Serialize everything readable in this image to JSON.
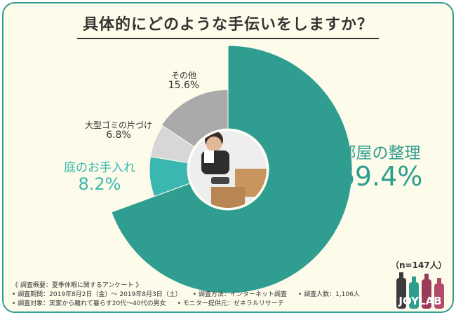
{
  "title": "具体的にどのような手伝いをしますか？",
  "chart_data": {
    "type": "donut",
    "unit": "%",
    "slices": [
      {
        "name": "部屋の整理",
        "value": 69.4,
        "color": "#2f9e91"
      },
      {
        "name": "庭のお手入れ",
        "value": 8.2,
        "color": "#3ab7b0"
      },
      {
        "name": "大型ゴミの片づけ",
        "value": 6.8,
        "color": "#d7d7d7"
      },
      {
        "name": "その他",
        "value": 15.6,
        "color": "#aaaaaa"
      }
    ],
    "labels": [
      {
        "name": "部屋の整理",
        "value_text": "69.4%"
      },
      {
        "name": "庭のお手入れ",
        "value_text": "8.2%"
      },
      {
        "name": "大型ゴミの片づけ",
        "value_text": "6.8%"
      },
      {
        "name": "その他",
        "value_text": "15.6%"
      }
    ]
  },
  "sample": "（n=147人）",
  "notes": {
    "heading": "《 調査概要：夏季休暇に関するアンケート 》",
    "period": "• 調査期間：2019年8月2日（金）～ 2019年8月3日（土）",
    "method": "• 調査方法：インターネット調査",
    "count": "• 調査人数：1,106人",
    "target": "• 調査対象：実家から離れて暮らす20代〜40代の男女",
    "provider": "• モニター提供元：ゼネラルリサーチ"
  },
  "logo": {
    "text": "JOYLAB"
  }
}
